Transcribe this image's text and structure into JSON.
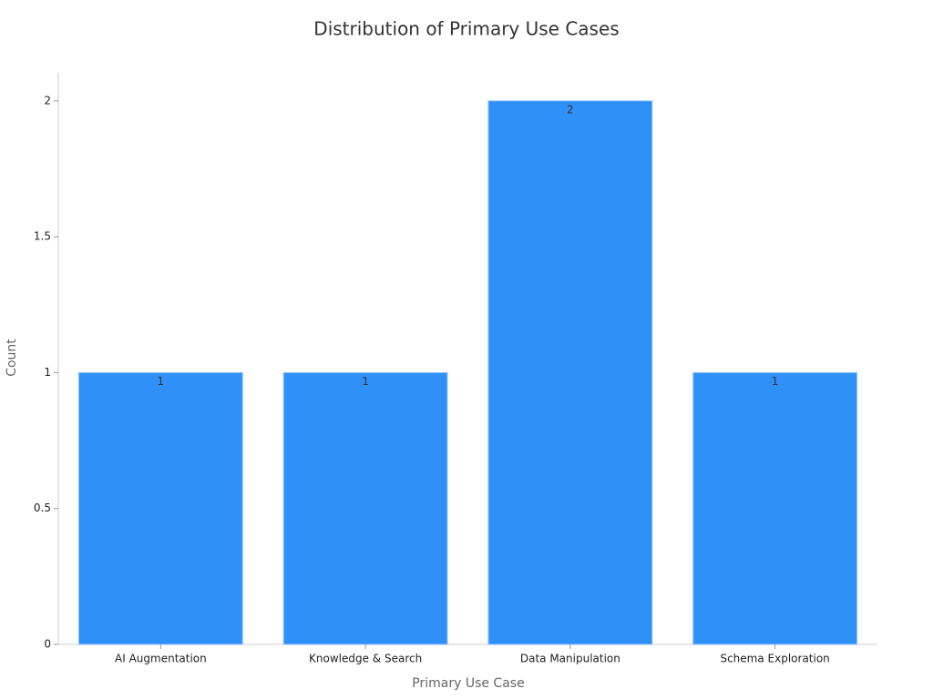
{
  "chart_data": {
    "type": "bar",
    "title": "Distribution of Primary Use Cases",
    "x_label": "Primary Use Case",
    "y_label": "Count",
    "categories": [
      "AI Augmentation",
      "Knowledge & Search",
      "Data Manipulation",
      "Schema Exploration"
    ],
    "values": [
      1,
      1,
      2,
      1
    ],
    "color": "#2f91f8",
    "ylim": [
      0,
      2.1
    ],
    "yticks": [
      0,
      0.5,
      1,
      1.5,
      2
    ],
    "grid": false
  }
}
